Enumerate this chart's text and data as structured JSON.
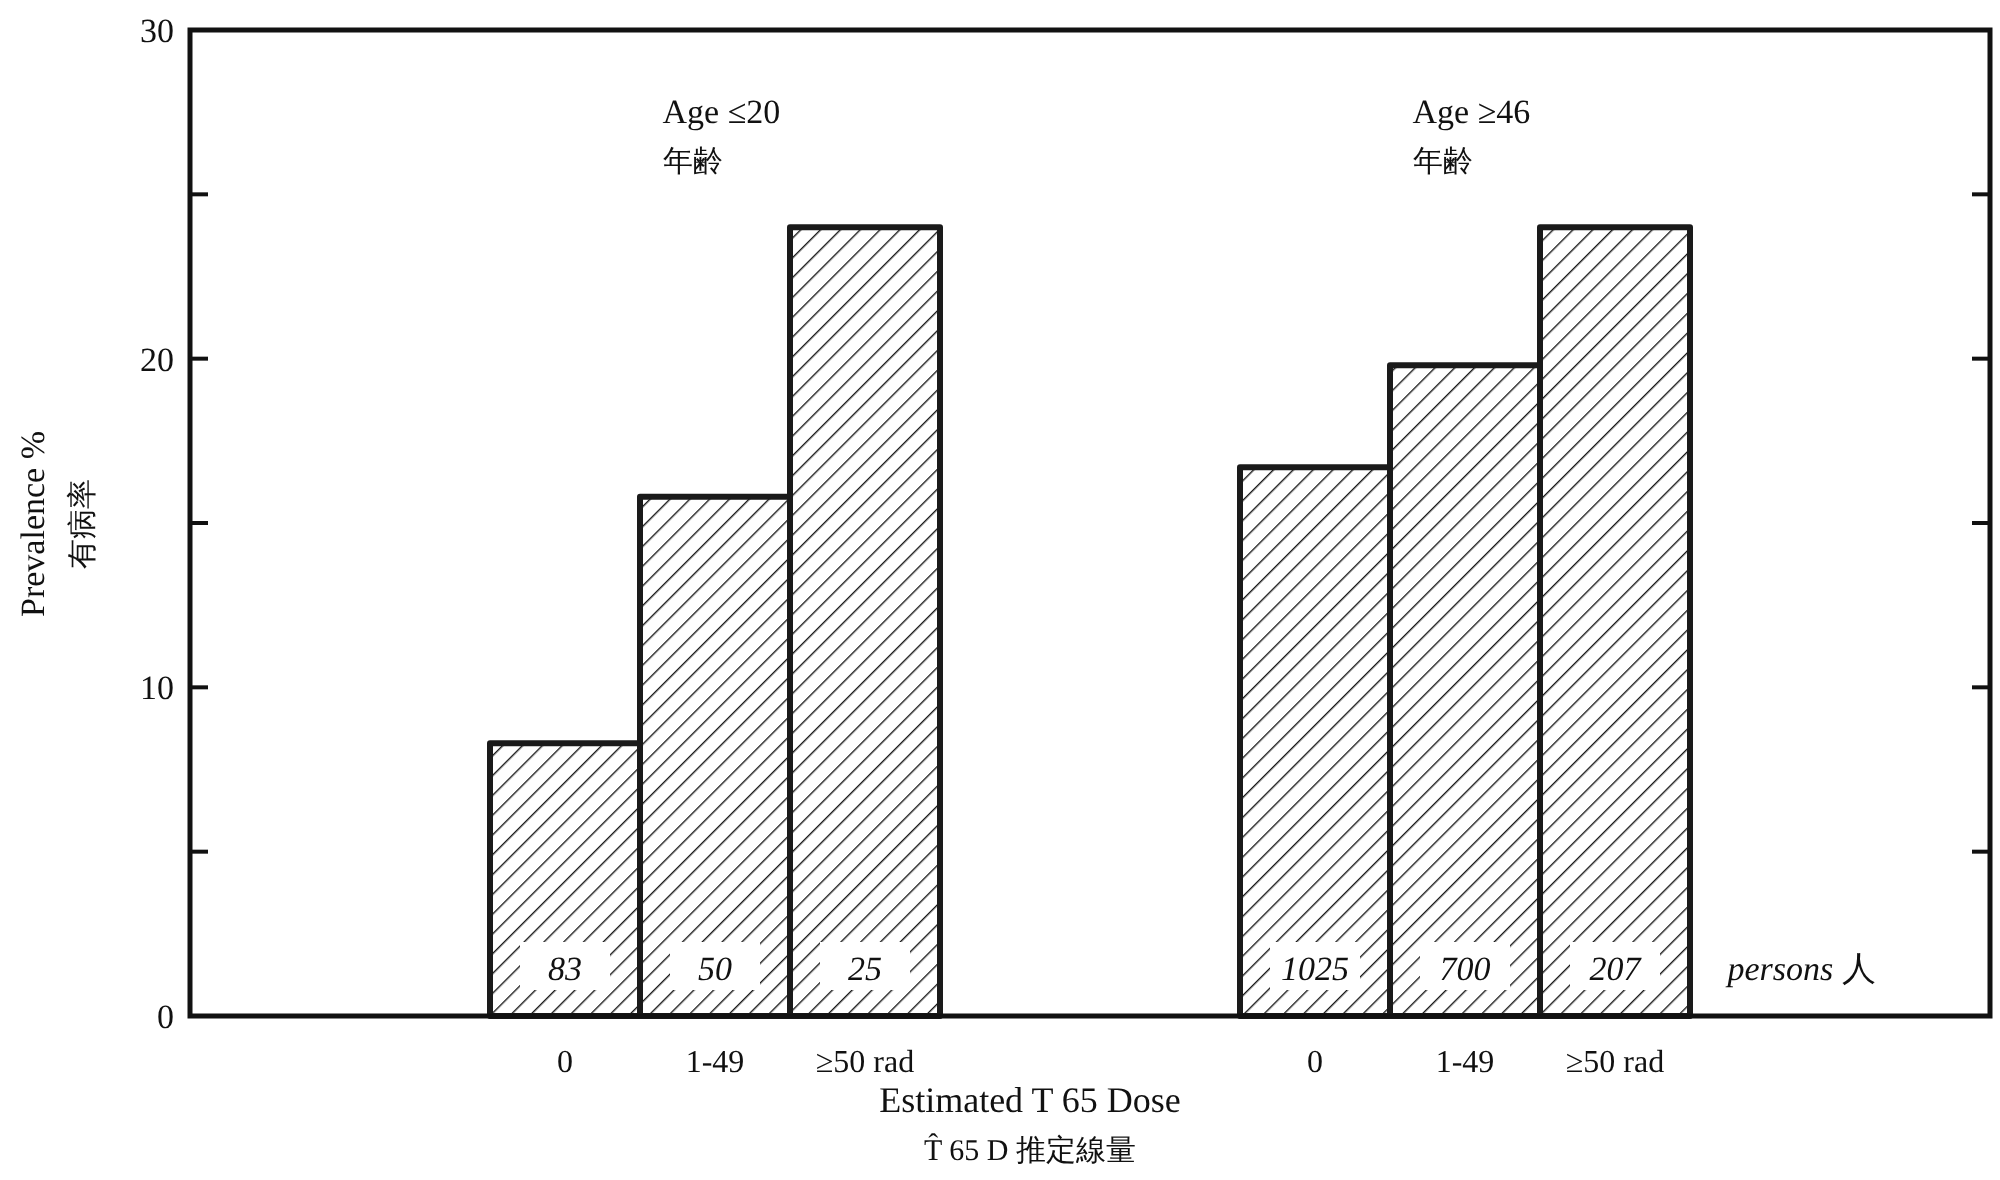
{
  "chart_data": {
    "type": "bar",
    "xlabel": "Estimated T 65 Dose\nT̂ 65 D 推定線量",
    "ylabel": "Prevalence %\n有病率",
    "categories": [
      null,
      null,
      "0",
      "1-49",
      "≥50 rad",
      null,
      null,
      "0",
      "1-49",
      "≥50 rad",
      null,
      null
    ],
    "values": [
      null,
      null,
      8.3,
      15.8,
      24,
      null,
      null,
      16.7,
      19.8,
      24,
      null,
      null
    ],
    "color": "#1a1a1a",
    "ylim": [
      0,
      30
    ],
    "yticks": [
      0,
      {
        "value": 5,
        "label": null
      },
      10,
      {
        "value": 15,
        "label": null
      },
      20,
      {
        "value": 25,
        "label": null
      },
      30
    ],
    "tick_labels": "xy",
    "annotations": [
      "Age ≤20\n年齢",
      "Age ≥46\n年齢",
      "83",
      "50",
      "25",
      "1025",
      "700",
      "207",
      "*persons* 人"
    ]
  }
}
